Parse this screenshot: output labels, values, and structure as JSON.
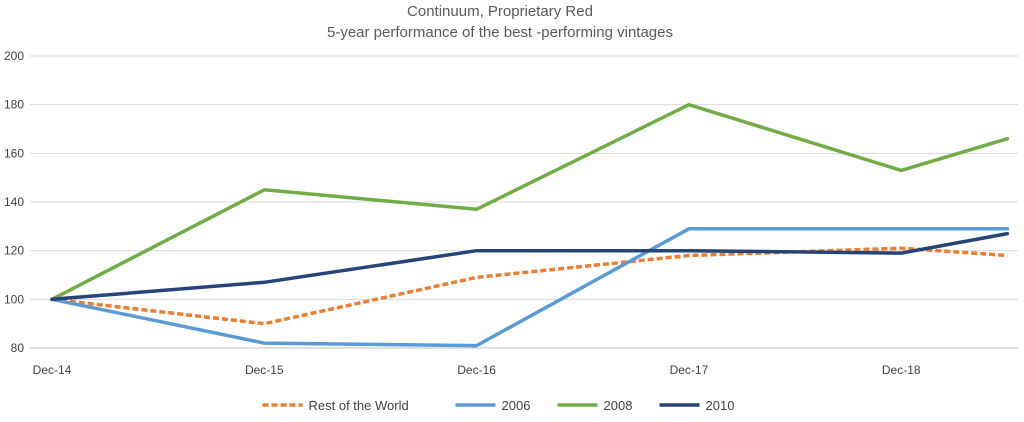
{
  "chart_data": {
    "type": "line",
    "title": "Continuum, Proprietary Red",
    "subtitle": "5-year performance of the best -performing vintages",
    "xlabel": "",
    "ylabel": "",
    "x": [
      0,
      1,
      2,
      3,
      4,
      4.5
    ],
    "categories": [
      "Dec-14",
      "Dec-15",
      "Dec-16",
      "Dec-17",
      "Dec-18"
    ],
    "xlim": [
      0,
      4.55
    ],
    "ylim": [
      80,
      200
    ],
    "yticks": [
      80,
      100,
      120,
      140,
      160,
      180,
      200
    ],
    "grid": true,
    "legend_position": "bottom",
    "series": [
      {
        "name": "Rest of the World",
        "color": "#ED7D31",
        "dashed": true,
        "values": [
          100,
          90,
          109,
          118,
          121,
          118
        ]
      },
      {
        "name": "2006",
        "color": "#5B9BD5",
        "dashed": false,
        "values": [
          100,
          82,
          81,
          129,
          129,
          129
        ]
      },
      {
        "name": "2008",
        "color": "#70AD47",
        "dashed": false,
        "values": [
          100,
          145,
          137,
          180,
          153,
          166
        ]
      },
      {
        "name": "2010",
        "color": "#264478",
        "dashed": false,
        "values": [
          100,
          107,
          120,
          120,
          119,
          127
        ]
      }
    ]
  }
}
